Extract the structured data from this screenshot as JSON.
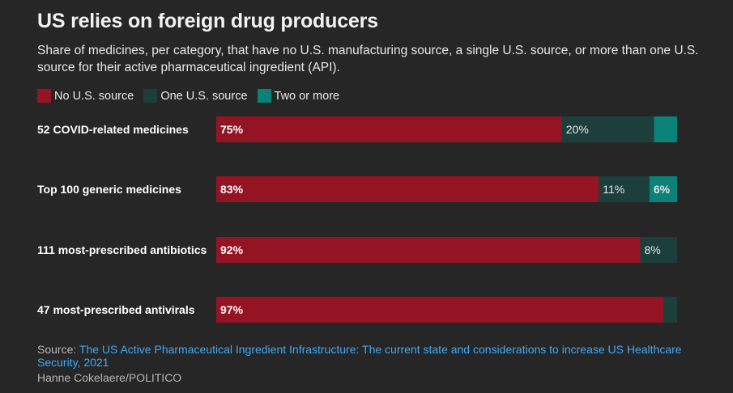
{
  "title": "US relies on foreign drug producers",
  "subtitle": "Share of medicines, per category, that have no U.S. manufacturing source, a single U.S. source, or more than one U.S. source for their active pharmaceutical ingredient (API).",
  "legend": [
    {
      "label": "No U.S. source",
      "color": "#951423"
    },
    {
      "label": "One U.S. source",
      "color": "#1c3f3c"
    },
    {
      "label": "Two or more",
      "color": "#0a8277"
    }
  ],
  "chart_data": {
    "type": "bar",
    "orientation": "horizontal",
    "stacked": true,
    "normalized": true,
    "categories": [
      "52 COVID-related medicines",
      "Top 100 generic medicines",
      "111 most-prescribed antibiotics",
      "47 most-prescribed antivirals"
    ],
    "series": [
      {
        "name": "No U.S. source",
        "values": [
          75,
          83,
          92,
          97
        ],
        "labels": [
          "75%",
          "83%",
          "92%",
          "97%"
        ]
      },
      {
        "name": "One U.S. source",
        "values": [
          20,
          11,
          8,
          3
        ],
        "labels": [
          "20%",
          "11%",
          "8%",
          ""
        ]
      },
      {
        "name": "Two or more",
        "values": [
          5,
          6,
          0,
          0
        ],
        "labels": [
          "",
          "6%",
          "",
          ""
        ]
      }
    ],
    "xlim": [
      0,
      100
    ],
    "grid": false
  },
  "source": {
    "prefix": "Source: ",
    "link_text": "The US Active Pharmaceutical Ingredient Infrastructure: The current state and considerations to increase US Healthcare Security, 2021"
  },
  "credit": "Hanne Cokelaere/POLITICO"
}
